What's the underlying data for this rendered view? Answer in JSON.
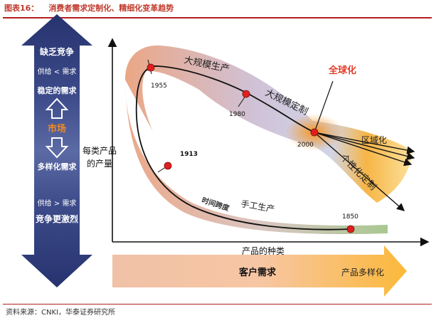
{
  "header": {
    "figure_number": "图表16：",
    "title": "消费者需求定制化、精细化变革趋势"
  },
  "left_bar": {
    "top_title": "缺乏竞争",
    "top_sub": "供给 < 需求",
    "top_demand": "稳定的需求",
    "center": "市场",
    "bottom_demand": "多样化需求",
    "bottom_sub": "供给 > 需求",
    "bottom_title": "竞争更激烈"
  },
  "axes": {
    "y_label_line1": "每类产品",
    "y_label_line2": "的产量",
    "x_label": "产品的种类"
  },
  "curve_labels": {
    "mass_production": "大规模生产",
    "mass_customization": "大规模定制",
    "globalization": "全球化",
    "regionalization": "区域化",
    "personalization": "个性化定制",
    "handicraft": "手工生产",
    "time_span": "时间跨度"
  },
  "years": {
    "y1850": "1850",
    "y1913": "1913",
    "y1955": "1955",
    "y1980": "1980",
    "y2000": "2000"
  },
  "bottom_arrow": {
    "main": "客户需求",
    "end": "产品多样化"
  },
  "footer": {
    "source": "资料来源：CNKI，华泰证券研究所"
  },
  "colors": {
    "header_red": "#c0392b",
    "left_bar_navy": "#1f2f6b",
    "market_orange": "#f08a24",
    "point_red": "#e02020",
    "globalization_red": "#e23b26"
  }
}
